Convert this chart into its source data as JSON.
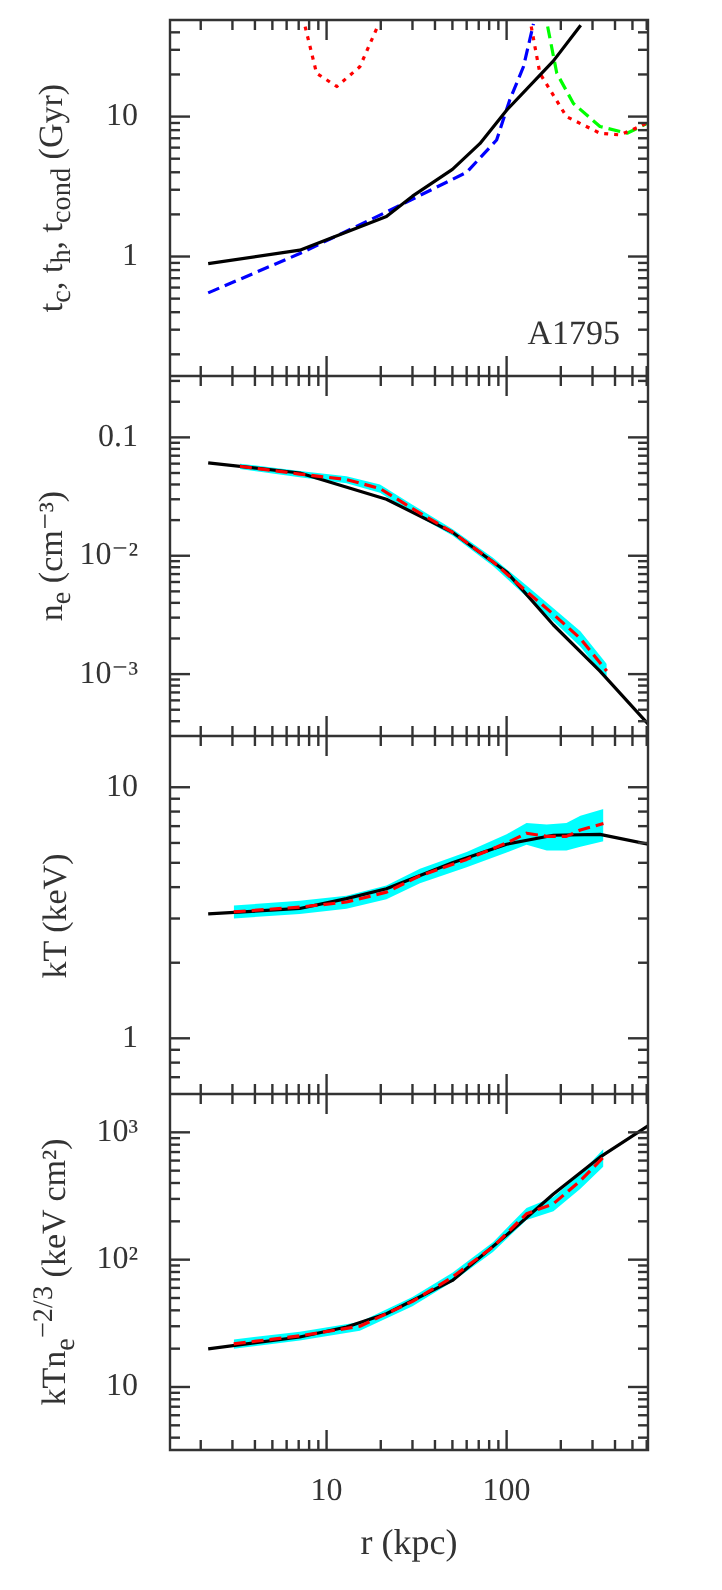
{
  "chart_data": [
    {
      "type": "line",
      "ylabel": "t$_{c}$, t$_{h}$, t$_{cond}$ (Gyr)",
      "log": "xy",
      "xlim": [
        1.35,
        610
      ],
      "ylim": [
        0.14,
        49
      ],
      "tick_labels": "y",
      "marker": "none",
      "annotations": [
        "A1795"
      ],
      "xticks": [
        {
          "value": 2,
          "label": null
        },
        {
          "value": 3,
          "label": null
        },
        {
          "value": 4,
          "label": null
        },
        {
          "value": 5,
          "label": null
        },
        {
          "value": 6,
          "label": null
        },
        {
          "value": 7,
          "label": null
        },
        {
          "value": 8,
          "label": null
        },
        {
          "value": 9,
          "label": null
        },
        {
          "value": 10,
          "label": null
        },
        {
          "value": 20,
          "label": null
        },
        {
          "value": 30,
          "label": null
        },
        {
          "value": 40,
          "label": null
        },
        {
          "value": 50,
          "label": null
        },
        {
          "value": 60,
          "label": null
        },
        {
          "value": 70,
          "label": null
        },
        {
          "value": 80,
          "label": null
        },
        {
          "value": 90,
          "label": null
        },
        {
          "value": 100,
          "label": null
        },
        {
          "value": 200,
          "label": null
        },
        {
          "value": 300,
          "label": null
        },
        {
          "value": 400,
          "label": null
        },
        {
          "value": 500,
          "label": null
        },
        {
          "value": 600,
          "label": null
        }
      ],
      "yticks": [
        {
          "value": 0.2,
          "label": null
        },
        {
          "value": 0.3,
          "label": null
        },
        {
          "value": 0.4,
          "label": null
        },
        {
          "value": 0.5,
          "label": null
        },
        {
          "value": 0.6,
          "label": null
        },
        {
          "value": 0.7,
          "label": null
        },
        {
          "value": 0.8,
          "label": null
        },
        {
          "value": 0.9,
          "label": null
        },
        1,
        {
          "value": 2,
          "label": null
        },
        {
          "value": 3,
          "label": null
        },
        {
          "value": 4,
          "label": null
        },
        {
          "value": 5,
          "label": null
        },
        {
          "value": 6,
          "label": null
        },
        {
          "value": 7,
          "label": null
        },
        {
          "value": 8,
          "label": null
        },
        {
          "value": 9,
          "label": null
        },
        10,
        {
          "value": 20,
          "label": null
        },
        {
          "value": 30,
          "label": null
        },
        {
          "value": 40,
          "label": null
        }
      ],
      "series": [
        {
          "color": "#000000",
          "line_style": "solid",
          "x": [
            2.2,
            7.1,
            21.5,
            30,
            50,
            71,
            100,
            182,
            258
          ],
          "values": [
            0.89,
            1.11,
            1.93,
            2.7,
            4.2,
            6.4,
            11.1,
            25,
            45
          ]
        },
        {
          "color": "#0000ff",
          "line_style": "dashed",
          "x": [
            2.2,
            7.1,
            21.5,
            60,
            88,
            104,
            124,
            141
          ],
          "values": [
            0.55,
            1.05,
            2.08,
            4.0,
            6.8,
            13.1,
            22.7,
            46
          ]
        },
        {
          "color": "#ff0000",
          "line_style": "dotted",
          "x": [
            7.6,
            8.8,
            11.4,
            15.3,
            19.2,
            50,
            137,
            153,
            215,
            330,
            427,
            550,
            610
          ],
          "values": [
            44,
            20.4,
            16.4,
            22.7,
            44,
            null,
            44,
            20.4,
            10,
            7.6,
            7.4,
            8.5,
            9.1
          ]
        },
        {
          "color": "#00ff00",
          "line_style": "dashed",
          "x": [
            169,
            190,
            235,
            330,
            467,
            600
          ],
          "values": [
            44,
            20.4,
            12.4,
            8.5,
            7.6,
            8.9
          ]
        }
      ]
    },
    {
      "type": "line",
      "ylabel": "n$_{e}$ (cm⁻³)",
      "log": "xy",
      "xlim": [
        1.35,
        610
      ],
      "ylim": [
        0.00032,
        0.33
      ],
      "tick_labels": "y",
      "marker": "none",
      "xticks": [
        {
          "value": 2,
          "label": null
        },
        {
          "value": 3,
          "label": null
        },
        {
          "value": 4,
          "label": null
        },
        {
          "value": 5,
          "label": null
        },
        {
          "value": 6,
          "label": null
        },
        {
          "value": 7,
          "label": null
        },
        {
          "value": 8,
          "label": null
        },
        {
          "value": 9,
          "label": null
        },
        {
          "value": 10,
          "label": null
        },
        {
          "value": 20,
          "label": null
        },
        {
          "value": 30,
          "label": null
        },
        {
          "value": 40,
          "label": null
        },
        {
          "value": 50,
          "label": null
        },
        {
          "value": 60,
          "label": null
        },
        {
          "value": 70,
          "label": null
        },
        {
          "value": 80,
          "label": null
        },
        {
          "value": 90,
          "label": null
        },
        {
          "value": 100,
          "label": null
        },
        {
          "value": 200,
          "label": null
        },
        {
          "value": 300,
          "label": null
        },
        {
          "value": 400,
          "label": null
        },
        {
          "value": 500,
          "label": null
        },
        {
          "value": 600,
          "label": null
        }
      ],
      "yticks": [
        {
          "value": 0.0004,
          "label": null
        },
        {
          "value": 0.0005,
          "label": null
        },
        {
          "value": 0.0006,
          "label": null
        },
        {
          "value": 0.0007,
          "label": null
        },
        {
          "value": 0.0008,
          "label": null
        },
        {
          "value": 0.0009,
          "label": null
        },
        {
          "value": 0.001,
          "label": "10⁻³"
        },
        {
          "value": 0.002,
          "label": null
        },
        {
          "value": 0.003,
          "label": null
        },
        {
          "value": 0.004,
          "label": null
        },
        {
          "value": 0.005,
          "label": null
        },
        {
          "value": 0.006,
          "label": null
        },
        {
          "value": 0.007,
          "label": null
        },
        {
          "value": 0.008,
          "label": null
        },
        {
          "value": 0.009,
          "label": null
        },
        {
          "value": 0.01,
          "label": "10⁻²"
        },
        {
          "value": 0.02,
          "label": null
        },
        {
          "value": 0.03,
          "label": null
        },
        {
          "value": 0.04,
          "label": null
        },
        {
          "value": 0.05,
          "label": null
        },
        {
          "value": 0.06,
          "label": null
        },
        {
          "value": 0.07,
          "label": null
        },
        {
          "value": 0.08,
          "label": null
        },
        {
          "value": 0.09,
          "label": null
        },
        0.1,
        {
          "value": 0.2,
          "label": null
        },
        {
          "value": 0.3,
          "label": null
        }
      ],
      "series": [
        {
          "color": "#ff0000",
          "line_style": "dashed",
          "x": [
            3.3,
            7.1,
            12.9,
            19.8,
            30,
            50,
            84,
            129,
            182,
            257,
            360
          ],
          "values": [
            0.057,
            0.049,
            0.044,
            0.037,
            0.025,
            0.0158,
            0.0089,
            0.005,
            0.0032,
            0.002,
            0.00106
          ],
          "lower": [
            0.054,
            0.046,
            0.041,
            0.034,
            0.023,
            0.0148,
            0.0082,
            0.0045,
            0.0028,
            0.0017,
            0.0009
          ],
          "upper": [
            0.06,
            0.052,
            0.047,
            0.04,
            0.027,
            0.0168,
            0.0096,
            0.0056,
            0.0036,
            0.0023,
            0.00122
          ]
        },
        {
          "color": "#000000",
          "line_style": "solid",
          "x": [
            2.2,
            7.1,
            21.5,
            50,
            100,
            182,
            330,
            610
          ],
          "values": [
            0.061,
            0.05,
            0.03,
            0.0158,
            0.0073,
            0.0026,
            0.00106,
            0.00038
          ]
        }
      ]
    },
    {
      "type": "line",
      "ylabel": "kT (keV)",
      "log": "xy",
      "xlim": [
        1.35,
        610
      ],
      "ylim": [
        0.63,
        16
      ],
      "tick_labels": "y",
      "marker": "none",
      "xticks": [
        {
          "value": 2,
          "label": null
        },
        {
          "value": 3,
          "label": null
        },
        {
          "value": 4,
          "label": null
        },
        {
          "value": 5,
          "label": null
        },
        {
          "value": 6,
          "label": null
        },
        {
          "value": 7,
          "label": null
        },
        {
          "value": 8,
          "label": null
        },
        {
          "value": 9,
          "label": null
        },
        {
          "value": 10,
          "label": null
        },
        {
          "value": 20,
          "label": null
        },
        {
          "value": 30,
          "label": null
        },
        {
          "value": 40,
          "label": null
        },
        {
          "value": 50,
          "label": null
        },
        {
          "value": 60,
          "label": null
        },
        {
          "value": 70,
          "label": null
        },
        {
          "value": 80,
          "label": null
        },
        {
          "value": 90,
          "label": null
        },
        {
          "value": 100,
          "label": null
        },
        {
          "value": 200,
          "label": null
        },
        {
          "value": 300,
          "label": null
        },
        {
          "value": 400,
          "label": null
        },
        {
          "value": 500,
          "label": null
        },
        {
          "value": 600,
          "label": null
        }
      ],
      "yticks": [
        {
          "value": 0.7,
          "label": null
        },
        {
          "value": 0.8,
          "label": null
        },
        {
          "value": 0.9,
          "label": null
        },
        1,
        {
          "value": 2,
          "label": null
        },
        {
          "value": 3,
          "label": null
        },
        {
          "value": 4,
          "label": null
        },
        {
          "value": 5,
          "label": null
        },
        {
          "value": 6,
          "label": null
        },
        {
          "value": 7,
          "label": null
        },
        {
          "value": 8,
          "label": null
        },
        {
          "value": 9,
          "label": null
        },
        10
      ],
      "series": [
        {
          "color": "#ff0000",
          "line_style": "dashed",
          "x": [
            3.05,
            7.1,
            12.9,
            21.5,
            33,
            60,
            100,
            129,
            167,
            215,
            257,
            345
          ],
          "values": [
            3.19,
            3.33,
            3.49,
            3.82,
            4.44,
            5.16,
            6.0,
            6.56,
            6.37,
            6.37,
            6.76,
            7.17
          ],
          "lower": [
            3.0,
            3.13,
            3.28,
            3.58,
            4.15,
            4.8,
            5.5,
            5.9,
            5.6,
            5.6,
            5.8,
            6.1
          ],
          "upper": [
            3.38,
            3.53,
            3.7,
            4.06,
            4.73,
            5.52,
            6.5,
            7.2,
            7.1,
            7.2,
            7.7,
            8.2
          ]
        },
        {
          "color": "#000000",
          "line_style": "solid",
          "x": [
            2.2,
            7.1,
            12.9,
            21.5,
            50,
            100,
            182,
            330,
            610
          ],
          "values": [
            3.13,
            3.29,
            3.6,
            3.94,
            5.0,
            5.93,
            6.44,
            6.49,
            5.93
          ]
        }
      ]
    },
    {
      "type": "line",
      "xlabel": "r (kpc)",
      "ylabel": "kTn$_{e}$$^{−2/3}$ (keV cm²)",
      "log": "xy",
      "xlim": [
        1.35,
        610
      ],
      "ylim": [
        3.2,
        2000
      ],
      "marker": "none",
      "xticks": [
        {
          "value": 2,
          "label": null
        },
        {
          "value": 3,
          "label": null
        },
        {
          "value": 4,
          "label": null
        },
        {
          "value": 5,
          "label": null
        },
        {
          "value": 6,
          "label": null
        },
        {
          "value": 7,
          "label": null
        },
        {
          "value": 8,
          "label": null
        },
        {
          "value": 9,
          "label": null
        },
        10,
        {
          "value": 20,
          "label": null
        },
        {
          "value": 30,
          "label": null
        },
        {
          "value": 40,
          "label": null
        },
        {
          "value": 50,
          "label": null
        },
        {
          "value": 60,
          "label": null
        },
        {
          "value": 70,
          "label": null
        },
        {
          "value": 80,
          "label": null
        },
        {
          "value": 90,
          "label": null
        },
        100,
        {
          "value": 200,
          "label": null
        },
        {
          "value": 300,
          "label": null
        },
        {
          "value": 400,
          "label": null
        },
        {
          "value": 500,
          "label": null
        },
        {
          "value": 600,
          "label": null
        }
      ],
      "yticks": [
        {
          "value": 4,
          "label": null
        },
        {
          "value": 5,
          "label": null
        },
        {
          "value": 6,
          "label": null
        },
        {
          "value": 7,
          "label": null
        },
        {
          "value": 8,
          "label": null
        },
        {
          "value": 9,
          "label": null
        },
        10,
        {
          "value": 20,
          "label": null
        },
        {
          "value": 30,
          "label": null
        },
        {
          "value": 40,
          "label": null
        },
        {
          "value": 50,
          "label": null
        },
        {
          "value": 60,
          "label": null
        },
        {
          "value": 70,
          "label": null
        },
        {
          "value": 80,
          "label": null
        },
        {
          "value": 90,
          "label": null
        },
        {
          "value": 100,
          "label": "10²"
        },
        {
          "value": 200,
          "label": null
        },
        {
          "value": 300,
          "label": null
        },
        {
          "value": 400,
          "label": null
        },
        {
          "value": 500,
          "label": null
        },
        {
          "value": 600,
          "label": null
        },
        {
          "value": 700,
          "label": null
        },
        {
          "value": 800,
          "label": null
        },
        {
          "value": 900,
          "label": null
        },
        {
          "value": 1000,
          "label": "10³"
        }
      ],
      "series": [
        {
          "color": "#ff0000",
          "line_style": "dashed",
          "x": [
            3.05,
            7.1,
            15.3,
            30,
            50,
            84,
            129,
            182,
            257,
            345
          ],
          "values": [
            21.8,
            25.2,
            30,
            47,
            73,
            126,
            229,
            275,
            417,
            638
          ],
          "lower": [
            20,
            23.2,
            27.6,
            43,
            67,
            115,
            205,
            240,
            360,
            540
          ],
          "upper": [
            23.6,
            27.2,
            32.4,
            51,
            79,
            137,
            255,
            310,
            475,
            740
          ]
        },
        {
          "color": "#000000",
          "line_style": "solid",
          "x": [
            2.2,
            7.1,
            12.9,
            21.5,
            50,
            100,
            182,
            330,
            610
          ],
          "values": [
            19.9,
            24.7,
            29.6,
            37.6,
            68.7,
            156,
            328,
            638,
            1122
          ]
        }
      ]
    }
  ]
}
